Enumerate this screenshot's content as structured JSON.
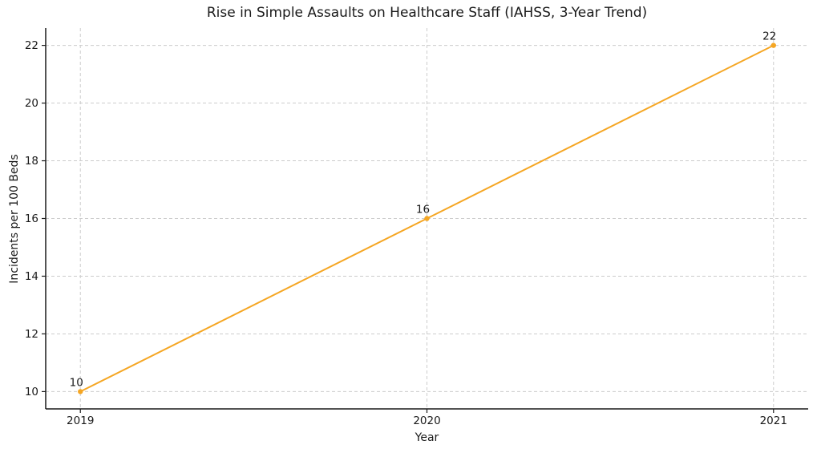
{
  "chart_data": {
    "type": "line",
    "title": "Rise in Simple Assaults on Healthcare Staff (IAHSS, 3-Year Trend)",
    "xlabel": "Year",
    "ylabel": "Incidents per 100 Beds",
    "x": [
      2019,
      2020,
      2021
    ],
    "categories": [
      "2019",
      "2020",
      "2021"
    ],
    "series": [
      {
        "name": "Incidents per 100 Beds",
        "values": [
          10,
          16,
          22
        ]
      }
    ],
    "point_labels": [
      "10",
      "16",
      "22"
    ],
    "xticks": [
      2019,
      2020,
      2021
    ],
    "xtick_labels": [
      "2019",
      "2020",
      "2021"
    ],
    "yticks": [
      10,
      12,
      14,
      16,
      18,
      20,
      22
    ],
    "ytick_labels": [
      "10",
      "12",
      "14",
      "16",
      "18",
      "20",
      "22"
    ],
    "xlim": [
      2018.9,
      2021.1
    ],
    "ylim": [
      9.4,
      22.6
    ],
    "grid": true,
    "legend_position": "none",
    "line_color": "#F5A623",
    "marker": "circle",
    "text_color": "#1a1a1a",
    "grid_color": "#cccccc",
    "spine_color": "#1a1a1a"
  }
}
